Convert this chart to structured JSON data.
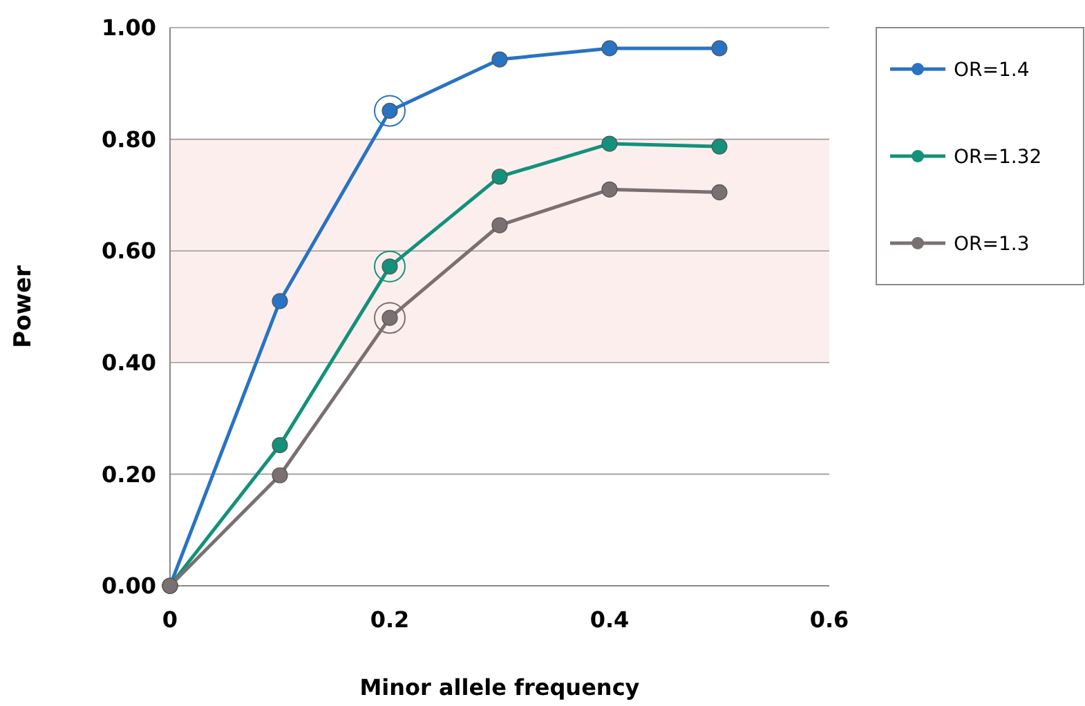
{
  "chart_data": {
    "type": "line",
    "xlabel": "Minor allele frequency",
    "ylabel": "Power",
    "x": [
      0,
      0.1,
      0.2,
      0.3,
      0.4,
      0.5
    ],
    "series": [
      {
        "name": "OR=1.4",
        "color": "#2873c3",
        "values": [
          0,
          0.51,
          0.851,
          0.943,
          0.963,
          0.963
        ]
      },
      {
        "name": "OR=1.32",
        "color": "#13917a",
        "values": [
          0,
          0.252,
          0.572,
          0.733,
          0.792,
          0.787
        ]
      },
      {
        "name": "OR=1.3",
        "color": "#7b7071",
        "values": [
          0,
          0.198,
          0.48,
          0.646,
          0.71,
          0.705
        ]
      }
    ],
    "xlim": [
      0,
      0.6
    ],
    "xticks": [
      {
        "value": 0,
        "label": "0"
      },
      {
        "value": 0.2,
        "label": "0.2"
      },
      {
        "value": 0.4,
        "label": "0.4"
      },
      {
        "value": 0.6,
        "label": "0.6"
      }
    ],
    "ylim": [
      0,
      1
    ],
    "yticks": [
      {
        "value": 0,
        "label": "0.00"
      },
      {
        "value": 0.2,
        "label": "0.20"
      },
      {
        "value": 0.4,
        "label": "0.40"
      },
      {
        "value": 0.6,
        "label": "0.60"
      },
      {
        "value": 0.8,
        "label": "0.80"
      },
      {
        "value": 1,
        "label": "1.00"
      }
    ],
    "bands": [
      {
        "axis": "y",
        "from": 0.4,
        "to": 0.8,
        "color": "#fdeeee"
      }
    ],
    "grid": "y",
    "legend": "right",
    "marker": "circle",
    "line_style": "solid"
  }
}
